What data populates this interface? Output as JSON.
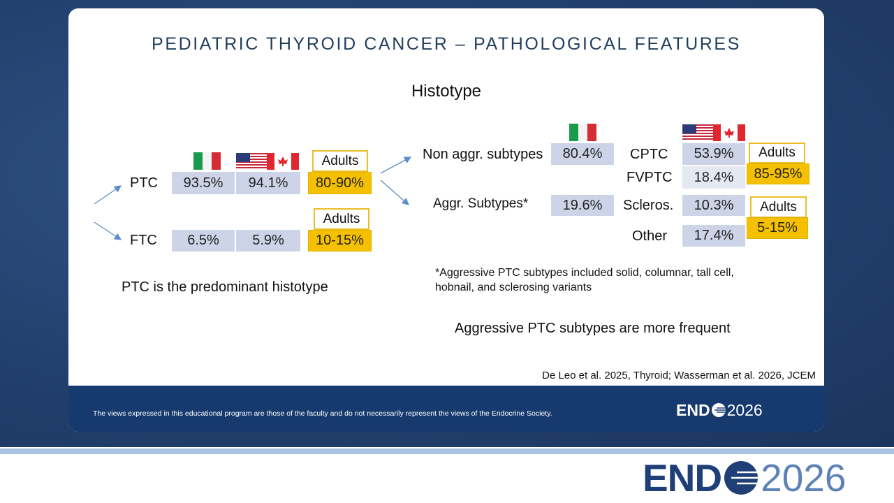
{
  "title": "PEDIATRIC THYROID CANCER – PATHOLOGICAL FEATURES",
  "heading": "Histotype",
  "left": {
    "rows": [
      {
        "label": "PTC",
        "italy": "93.5%",
        "usa_canada": "94.1%",
        "adults_label": "Adults",
        "adults": "80-90%"
      },
      {
        "label": "FTC",
        "italy": "6.5%",
        "usa_canada": "5.9%",
        "adults_label": "Adults",
        "adults": "10-15%"
      }
    ],
    "conclusion": "PTC is the predominant histotype"
  },
  "right": {
    "groups": [
      {
        "label": "Non aggr. subtypes",
        "italy": "80.4%",
        "adults_label": "Adults",
        "adults": "85-95%",
        "subtypes": [
          {
            "label": "CPTC",
            "value": "53.9%"
          },
          {
            "label": "FVPTC",
            "value": "18.4%"
          }
        ]
      },
      {
        "label": "Aggr. Subtypes*",
        "italy": "19.6%",
        "adults_label": "Adults",
        "adults": "5-15%",
        "subtypes": [
          {
            "label": "Scleros.",
            "value": "10.3%"
          },
          {
            "label": "Other",
            "value": "17.4%"
          }
        ]
      }
    ],
    "footnote": [
      "*Aggressive PTC subtypes included solid, columnar, tall cell,",
      "hobnail, and sclerosing variants"
    ],
    "conclusion": "Aggressive PTC subtypes are more frequent"
  },
  "citation": "De Leo et al. 2025, Thyroid; Wasserman et al. 2026, JCEM",
  "footer": {
    "disclaimer": "The views expressed in this educational program are those of the faculty and do not necessarily represent the views of the Endocrine Society.",
    "logo": {
      "left": "END",
      "right": "2026"
    }
  },
  "brand_logo": {
    "left": "END",
    "right": "2026"
  }
}
